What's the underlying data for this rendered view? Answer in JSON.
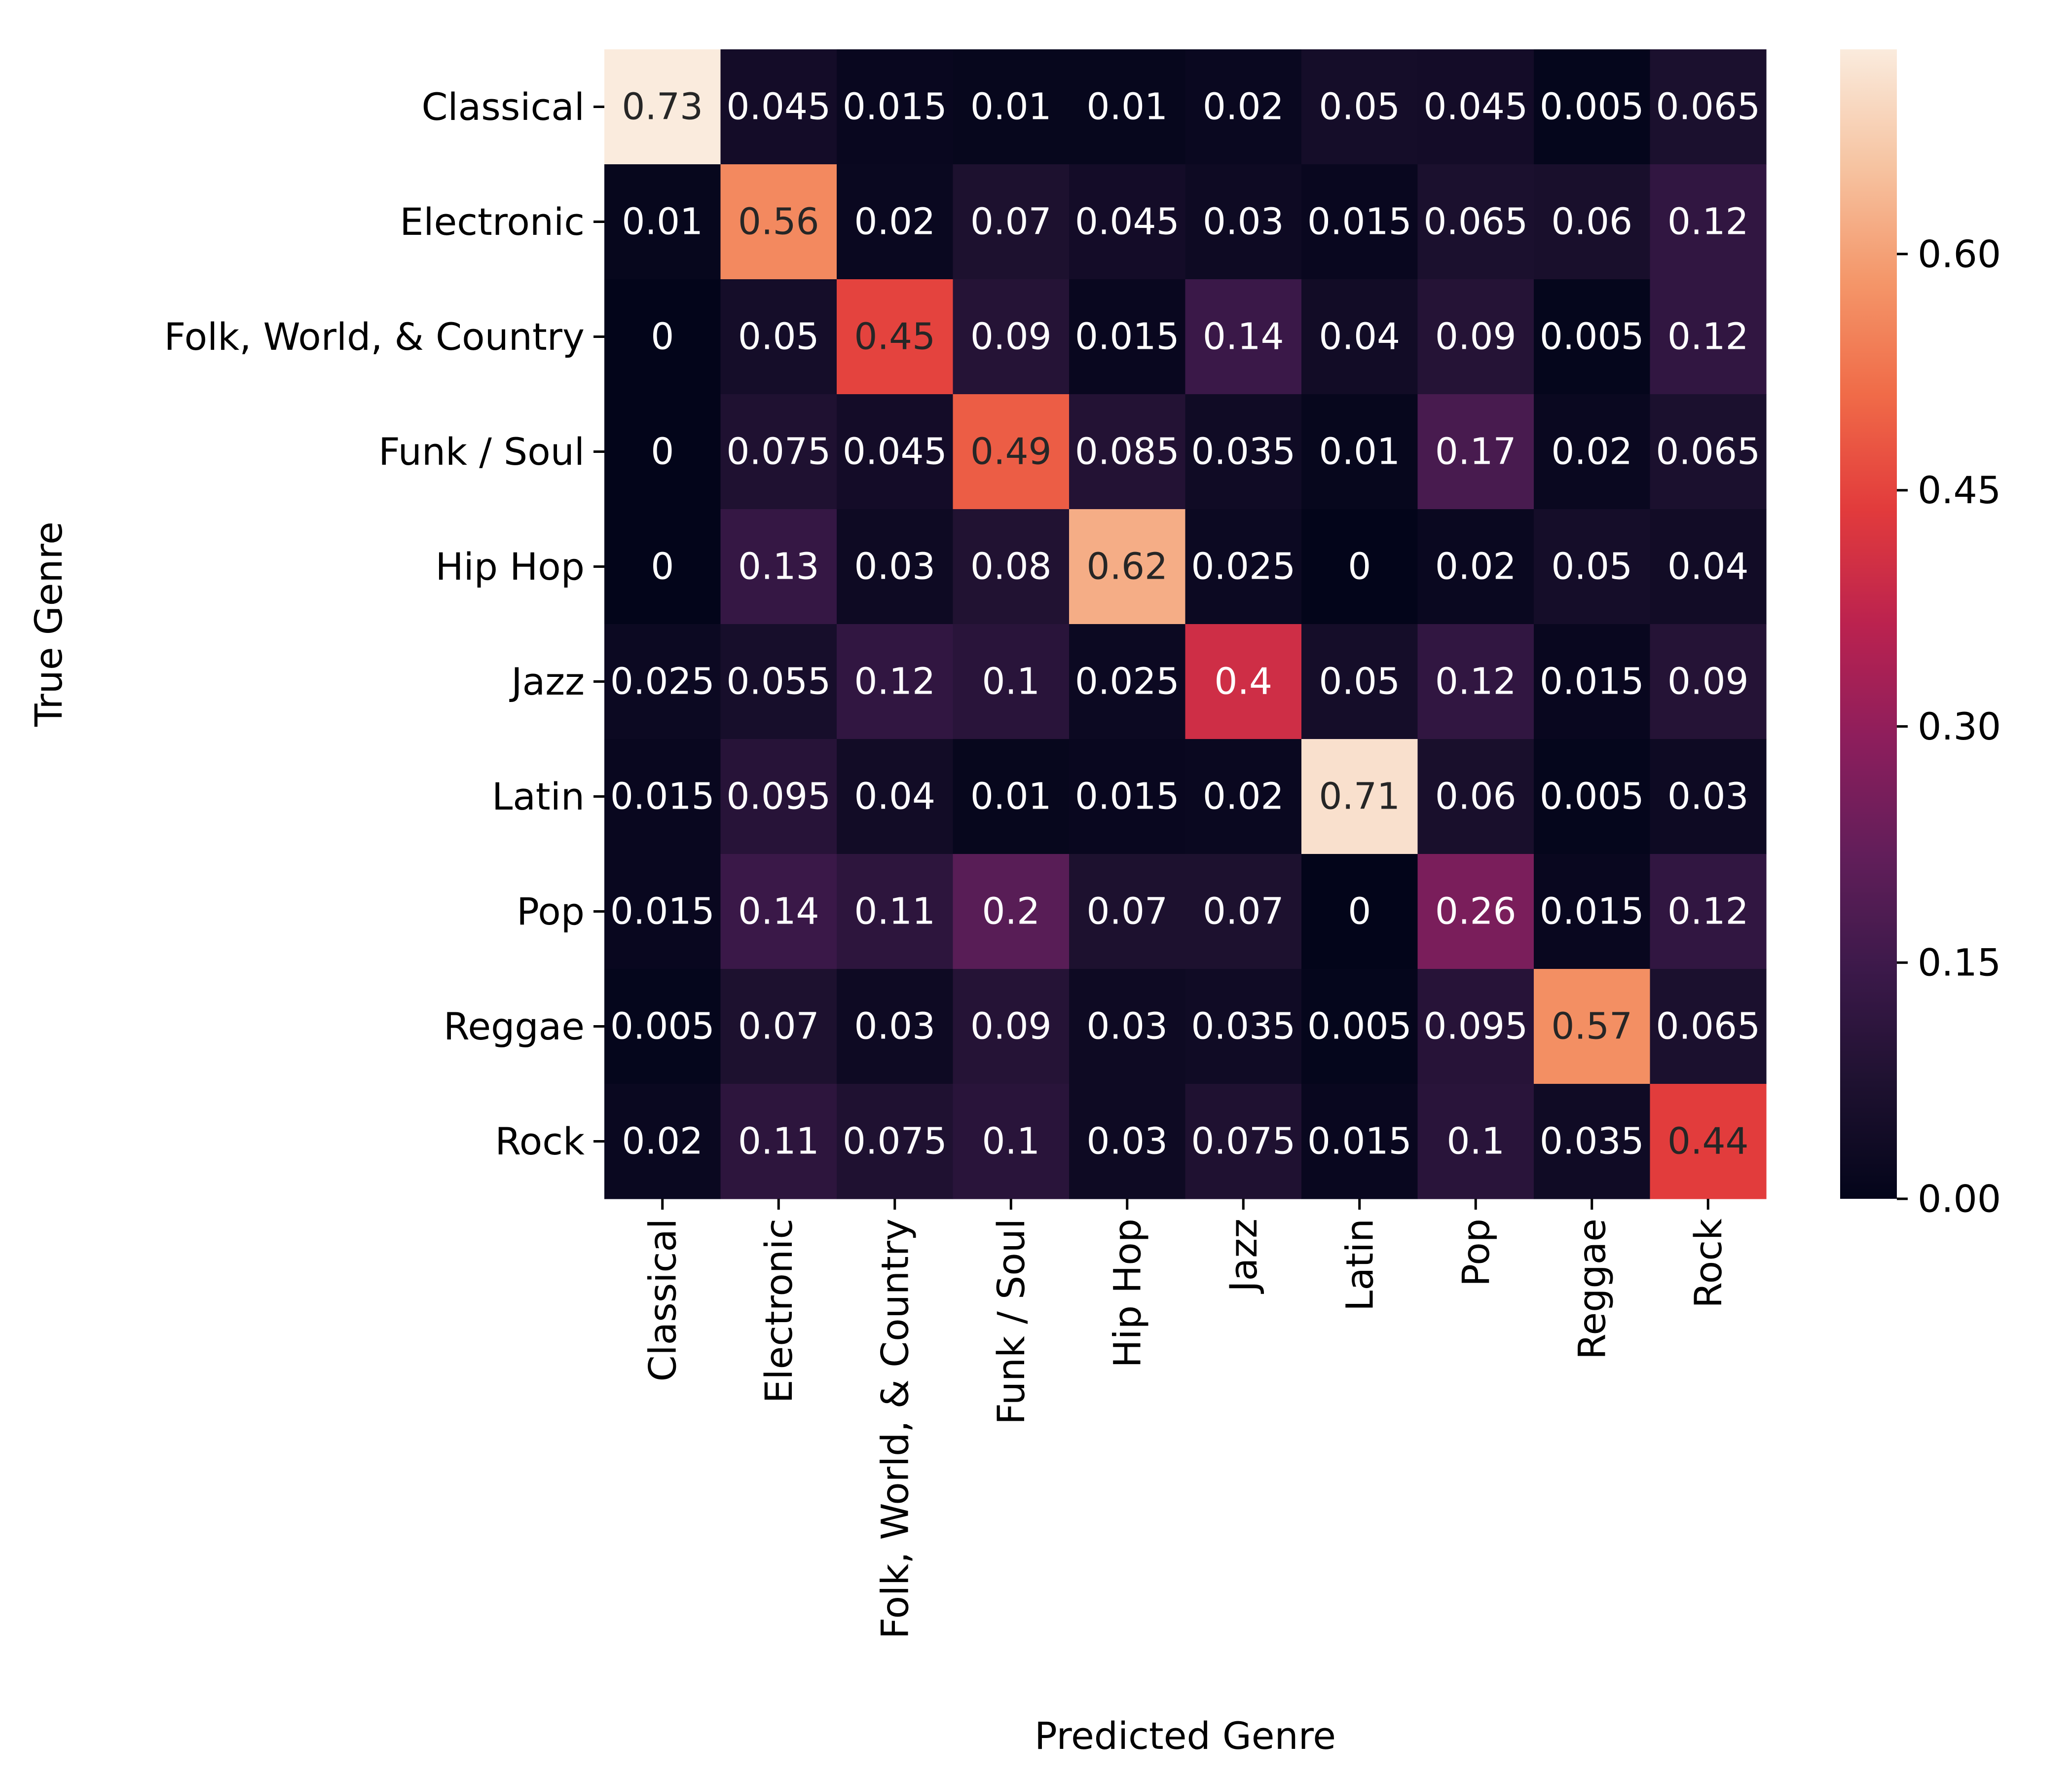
{
  "chart_data": {
    "type": "heatmap",
    "xlabel": "Predicted Genre",
    "ylabel": "True Genre",
    "x_categories": [
      "Classical",
      "Electronic",
      "Folk, World, & Country",
      "Funk / Soul",
      "Hip Hop",
      "Jazz",
      "Latin",
      "Pop",
      "Reggae",
      "Rock"
    ],
    "y_categories": [
      "Classical",
      "Electronic",
      "Folk, World, & Country",
      "Funk / Soul",
      "Hip Hop",
      "Jazz",
      "Latin",
      "Pop",
      "Reggae",
      "Rock"
    ],
    "values": [
      [
        0.73,
        0.045,
        0.015,
        0.01,
        0.01,
        0.02,
        0.05,
        0.045,
        0.005,
        0.065
      ],
      [
        0.01,
        0.56,
        0.02,
        0.07,
        0.045,
        0.03,
        0.015,
        0.065,
        0.06,
        0.12
      ],
      [
        0,
        0.05,
        0.45,
        0.09,
        0.015,
        0.14,
        0.04,
        0.09,
        0.005,
        0.12
      ],
      [
        0,
        0.075,
        0.045,
        0.49,
        0.085,
        0.035,
        0.01,
        0.17,
        0.02,
        0.065
      ],
      [
        0,
        0.13,
        0.03,
        0.08,
        0.62,
        0.025,
        0,
        0.02,
        0.05,
        0.04
      ],
      [
        0.025,
        0.055,
        0.12,
        0.1,
        0.025,
        0.4,
        0.05,
        0.12,
        0.015,
        0.09
      ],
      [
        0.015,
        0.095,
        0.04,
        0.01,
        0.015,
        0.02,
        0.71,
        0.06,
        0.005,
        0.03
      ],
      [
        0.015,
        0.14,
        0.11,
        0.2,
        0.07,
        0.07,
        0,
        0.26,
        0.015,
        0.12
      ],
      [
        0.005,
        0.07,
        0.03,
        0.09,
        0.03,
        0.035,
        0.005,
        0.095,
        0.57,
        0.065
      ],
      [
        0.02,
        0.11,
        0.075,
        0.1,
        0.03,
        0.075,
        0.015,
        0.1,
        0.035,
        0.44
      ]
    ],
    "colorbar": {
      "min": 0,
      "max": 0.73,
      "ticks": [
        0,
        0.15,
        0.3,
        0.45,
        0.6
      ],
      "tick_labels": [
        "0.00",
        "0.15",
        "0.30",
        "0.45",
        "0.60"
      ],
      "colormap": "rocket"
    },
    "grid": false,
    "legend": "colorbar-right"
  }
}
